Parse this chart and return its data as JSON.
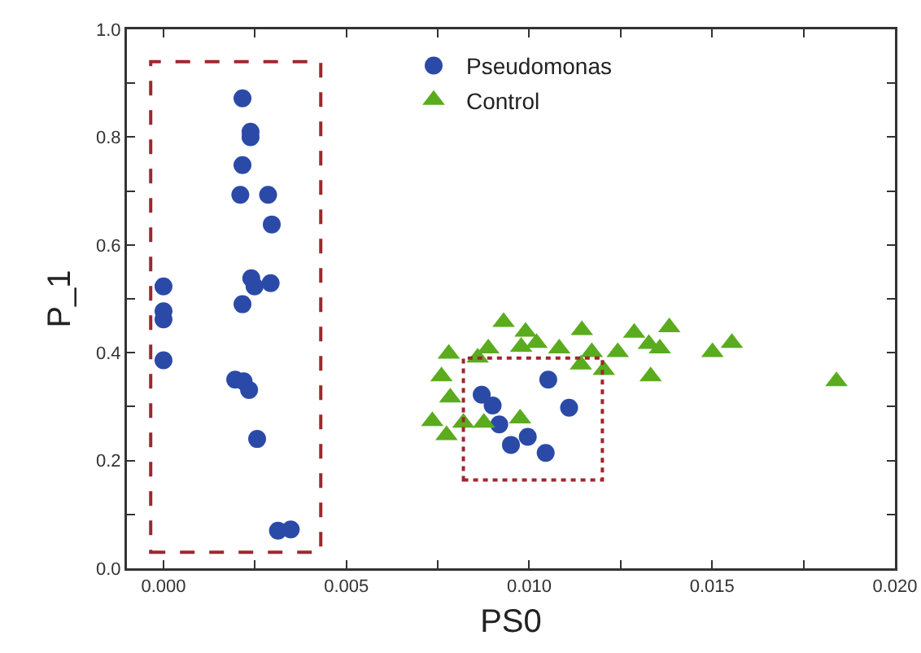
{
  "chart_data": {
    "type": "scatter",
    "xlabel": "PS0",
    "ylabel": "P_1",
    "xlim": [
      -0.001,
      0.02
    ],
    "ylim": [
      0,
      1
    ],
    "xticks": [
      {
        "value": 0,
        "label": "0.000"
      },
      {
        "value": 0.0025,
        "label": null
      },
      {
        "value": 0.005,
        "label": "0.005"
      },
      {
        "value": 0.0075,
        "label": null
      },
      {
        "value": 0.01,
        "label": "0.010"
      },
      {
        "value": 0.0125,
        "label": null
      },
      {
        "value": 0.015,
        "label": "0.015"
      },
      {
        "value": 0.0175,
        "label": null
      },
      {
        "value": 0.02,
        "label": "0.020"
      }
    ],
    "yticks": [
      {
        "value": 0,
        "label": "0.0"
      },
      {
        "value": 0.1,
        "label": null
      },
      {
        "value": 0.2,
        "label": "0.2"
      },
      {
        "value": 0.3,
        "label": null
      },
      {
        "value": 0.4,
        "label": "0.4"
      },
      {
        "value": 0.5,
        "label": null
      },
      {
        "value": 0.6,
        "label": "0.6"
      },
      {
        "value": 0.7,
        "label": null
      },
      {
        "value": 0.8,
        "label": "0.8"
      },
      {
        "value": 0.9,
        "label": null
      },
      {
        "value": 1,
        "label": "1.0"
      }
    ],
    "grid": false,
    "legend": "top",
    "series": [
      {
        "name": "Pseudomonas",
        "color": "#2b4aa8",
        "marker": "circle",
        "x": [
          0,
          0,
          0,
          0,
          0.00216,
          0.00238,
          0.00238,
          0.00216,
          0.0021,
          0.00286,
          0.00296,
          0.0024,
          0.00249,
          0.00293,
          0.00216,
          0.00196,
          0.00219,
          0.00234,
          0.00256,
          0.00313,
          0.00348,
          0.0087,
          0.009,
          0.00918,
          0.0095,
          0.00996,
          0.01045,
          0.01052,
          0.01109
        ],
        "values": [
          0.523,
          0.477,
          0.462,
          0.386,
          0.872,
          0.81,
          0.8,
          0.748,
          0.693,
          0.693,
          0.638,
          0.538,
          0.523,
          0.529,
          0.49,
          0.35,
          0.347,
          0.331,
          0.24,
          0.07,
          0.072,
          0.322,
          0.302,
          0.267,
          0.229,
          0.244,
          0.214,
          0.35,
          0.298
        ]
      },
      {
        "name": "Control",
        "color": "#5aac1e",
        "marker": "triangle",
        "x": [
          0.0078,
          0.0076,
          0.00784,
          0.00735,
          0.00774,
          0.0082,
          0.00876,
          0.00975,
          0.00859,
          0.00888,
          0.0093,
          0.0099,
          0.00978,
          0.0102,
          0.01082,
          0.01144,
          0.01171,
          0.01141,
          0.01204,
          0.01242,
          0.01287,
          0.01327,
          0.01357,
          0.01383,
          0.01332,
          0.01501,
          0.01554,
          0.0184
        ],
        "values": [
          0.398,
          0.356,
          0.317,
          0.273,
          0.247,
          0.27,
          0.27,
          0.278,
          0.391,
          0.408,
          0.457,
          0.439,
          0.411,
          0.418,
          0.408,
          0.442,
          0.401,
          0.378,
          0.368,
          0.401,
          0.437,
          0.416,
          0.408,
          0.447,
          0.356,
          0.401,
          0.418,
          0.347
        ]
      }
    ]
  }
}
